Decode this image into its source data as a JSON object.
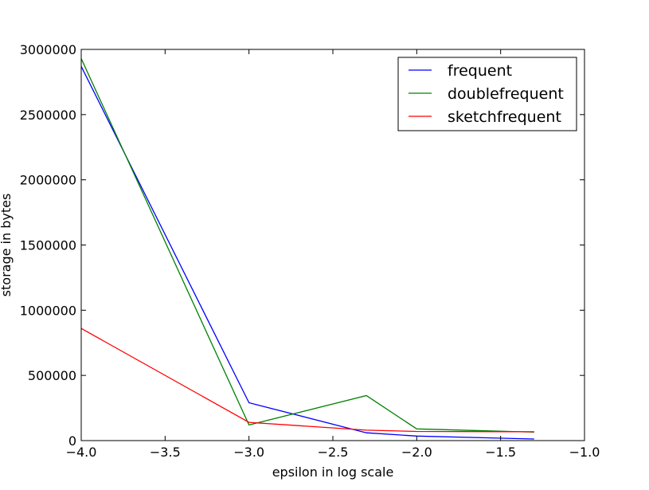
{
  "chart_data": {
    "type": "line",
    "title": "",
    "xlabel": "epsilon in log scale",
    "ylabel": "storage in bytes",
    "xlim": [
      -4.0,
      -1.0
    ],
    "ylim": [
      0,
      3000000
    ],
    "xticks": [
      -4.0,
      -3.5,
      -3.0,
      -2.5,
      -2.0,
      -1.5,
      -1.0
    ],
    "xtick_labels": [
      "−4.0",
      "−3.5",
      "−3.0",
      "−2.5",
      "−2.0",
      "−1.5",
      "−1.0"
    ],
    "yticks": [
      0,
      500000,
      1000000,
      1500000,
      2000000,
      2500000,
      3000000
    ],
    "ytick_labels": [
      "0",
      "500000",
      "1000000",
      "1500000",
      "2000000",
      "2500000",
      "3000000"
    ],
    "grid": false,
    "legend_position": "top-right",
    "x": [
      -4.0,
      -3.0,
      -2.3,
      -2.0,
      -1.3
    ],
    "series": [
      {
        "name": "frequent",
        "color": "#0000ff",
        "values": [
          2870000,
          290000,
          60000,
          35000,
          12000
        ]
      },
      {
        "name": "doublefrequent",
        "color": "#008000",
        "values": [
          2930000,
          120000,
          345000,
          90000,
          65000
        ]
      },
      {
        "name": "sketchfrequent",
        "color": "#ff0000",
        "values": [
          860000,
          140000,
          80000,
          70000,
          68000
        ]
      }
    ]
  }
}
